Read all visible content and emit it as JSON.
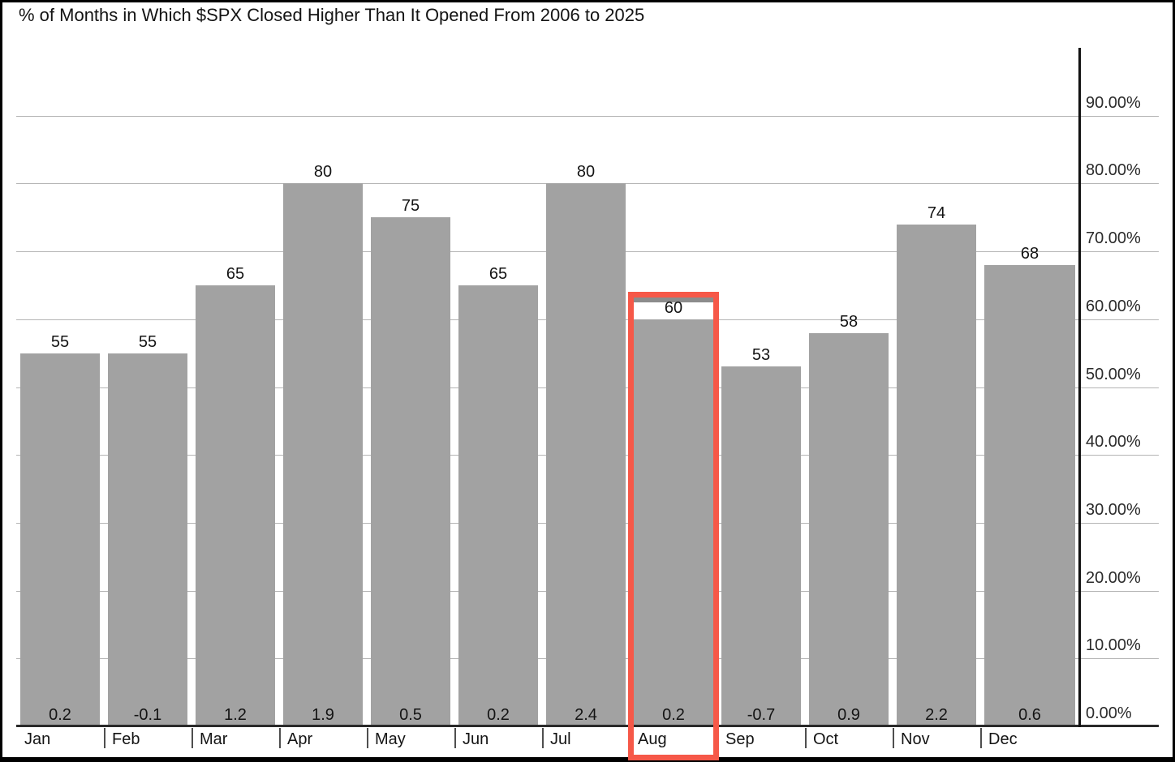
{
  "chart_data": {
    "type": "bar",
    "title": "% of Months in Which $SPX Closed Higher Than It Opened From 2006 to 2025",
    "categories": [
      "Jan",
      "Feb",
      "Mar",
      "Apr",
      "May",
      "Jun",
      "Jul",
      "Aug",
      "Sep",
      "Oct",
      "Nov",
      "Dec"
    ],
    "values": [
      55,
      55,
      65,
      80,
      75,
      65,
      80,
      60,
      53,
      58,
      74,
      68
    ],
    "bar_top_labels": [
      "55",
      "55",
      "65",
      "80",
      "75",
      "65",
      "80",
      "60",
      "53",
      "58",
      "74",
      "68"
    ],
    "bar_base_labels": [
      "0.2",
      "-0.1",
      "1.2",
      "1.9",
      "0.5",
      "0.2",
      "2.4",
      "0.2",
      "-0.7",
      "0.9",
      "2.2",
      "0.6"
    ],
    "y_axis": {
      "side": "right",
      "range": [
        0,
        100
      ],
      "tick_labels": [
        "90.00%",
        "80.00%",
        "70.00%",
        "60.00%",
        "50.00%",
        "40.00%",
        "30.00%",
        "20.00%",
        "10.00%",
        "0.00%"
      ]
    },
    "grid": true,
    "legend": "none",
    "highlight": {
      "category": "Aug",
      "value_label": "60",
      "box_color": "#f65848"
    },
    "colors": {
      "bar": "#a2a2a2",
      "gridline": "#b4b4b4",
      "axis": "#111111",
      "baseline": "#2a2a2a",
      "highlight_box": "#f65848",
      "highlight_strip": "#8c8c8c",
      "background": "#ffffff",
      "text": "#141414"
    }
  }
}
